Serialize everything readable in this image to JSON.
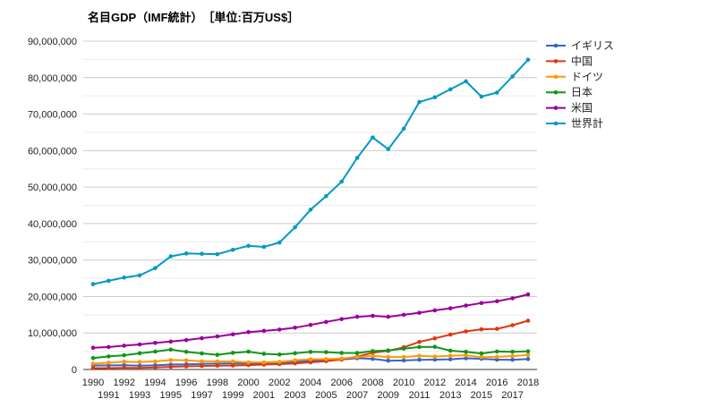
{
  "chart_data": {
    "type": "line",
    "title": "名目GDP（IMF統計）　［単位:百万US$］",
    "xlabel": "",
    "ylabel": "",
    "ylim": [
      0,
      90000000
    ],
    "yticks": [
      "0",
      "10,000,000",
      "20,000,000",
      "30,000,000",
      "40,000,000",
      "50,000,000",
      "60,000,000",
      "70,000,000",
      "80,000,000",
      "90,000,000"
    ],
    "grid": true,
    "legend_position": "right",
    "x": [
      "1990",
      "1991",
      "1992",
      "1993",
      "1994",
      "1995",
      "1996",
      "1997",
      "1998",
      "1999",
      "2000",
      "2001",
      "2002",
      "2003",
      "2004",
      "2005",
      "2006",
      "2007",
      "2008",
      "2009",
      "2010",
      "2011",
      "2012",
      "2013",
      "2014",
      "2015",
      "2016",
      "2017",
      "2018"
    ],
    "series": [
      {
        "name": "イギリス",
        "color": "#3366cc",
        "values": [
          1090000,
          1140000,
          1180000,
          1060000,
          1140000,
          1340000,
          1410000,
          1550000,
          1630000,
          1660000,
          1660000,
          1640000,
          1780000,
          2060000,
          2420000,
          2540000,
          2710000,
          3090000,
          2920000,
          2410000,
          2480000,
          2660000,
          2700000,
          2790000,
          3060000,
          2930000,
          2690000,
          2660000,
          2860000
        ]
      },
      {
        "name": "中国",
        "color": "#dc3912",
        "values": [
          360000,
          380000,
          430000,
          440000,
          560000,
          730000,
          860000,
          960000,
          1030000,
          1090000,
          1210000,
          1340000,
          1470000,
          1660000,
          1960000,
          2290000,
          2750000,
          3550000,
          4590000,
          5100000,
          6090000,
          7550000,
          8530000,
          9570000,
          10440000,
          11020000,
          11140000,
          12140000,
          13370000
        ]
      },
      {
        "name": "ドイツ",
        "color": "#ff9900",
        "values": [
          1600000,
          1860000,
          2120000,
          2070000,
          2210000,
          2590000,
          2500000,
          2220000,
          2240000,
          2190000,
          1950000,
          1950000,
          2080000,
          2500000,
          2810000,
          2850000,
          3000000,
          3440000,
          3750000,
          3420000,
          3420000,
          3760000,
          3550000,
          3750000,
          3900000,
          3380000,
          3470000,
          3690000,
          3950000
        ]
      },
      {
        "name": "日本",
        "color": "#109618",
        "values": [
          3130000,
          3580000,
          3910000,
          4450000,
          4910000,
          5450000,
          4830000,
          4410000,
          4030000,
          4560000,
          4890000,
          4300000,
          4120000,
          4450000,
          4820000,
          4760000,
          4530000,
          4520000,
          5040000,
          5230000,
          5700000,
          6160000,
          6200000,
          5160000,
          4850000,
          4390000,
          4930000,
          4860000,
          4970000
        ]
      },
      {
        "name": "米国",
        "color": "#990099",
        "values": [
          5960000,
          6160000,
          6520000,
          6860000,
          7290000,
          7640000,
          8070000,
          8580000,
          9060000,
          9630000,
          10250000,
          10580000,
          10940000,
          11460000,
          12210000,
          13040000,
          13810000,
          14450000,
          14710000,
          14450000,
          14990000,
          15540000,
          16200000,
          16780000,
          17520000,
          18220000,
          18710000,
          19520000,
          20580000
        ]
      },
      {
        "name": "世界計",
        "color": "#0099c6",
        "values": [
          23400000,
          24300000,
          25200000,
          25800000,
          27800000,
          31000000,
          31800000,
          31700000,
          31600000,
          32800000,
          33900000,
          33600000,
          34800000,
          39000000,
          43800000,
          47500000,
          51500000,
          58000000,
          63600000,
          60400000,
          66000000,
          73300000,
          74600000,
          76800000,
          79000000,
          74800000,
          75900000,
          80300000,
          84900000
        ]
      }
    ]
  }
}
